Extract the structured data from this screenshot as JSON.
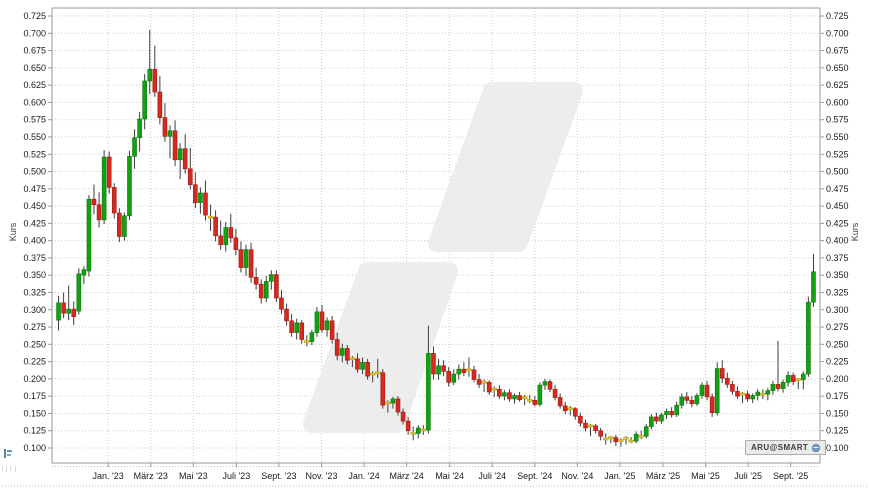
{
  "chart": {
    "ylabel_left": "Kurs",
    "ylabel_right": "Kurs",
    "badge_label": "ARU@SMART"
  },
  "chart_data": {
    "type": "candlestick",
    "title": "",
    "ylabel": "Kurs",
    "grid": true,
    "ylim": [
      0.0783,
      0.7366
    ],
    "y_ticks": [
      0.725,
      0.7,
      0.675,
      0.65,
      0.625,
      0.6,
      0.575,
      0.55,
      0.525,
      0.5,
      0.475,
      0.45,
      0.425,
      0.4,
      0.375,
      0.35,
      0.325,
      0.3,
      0.275,
      0.25,
      0.225,
      0.2,
      0.175,
      0.15,
      0.125,
      0.1
    ],
    "x_ticks": [
      {
        "label": "Jan. '23",
        "pos": 9.8
      },
      {
        "label": "März '23",
        "pos": 18.2
      },
      {
        "label": "Mai '23",
        "pos": 26.6
      },
      {
        "label": "Juli '23",
        "pos": 35.1
      },
      {
        "label": "Sept. '23",
        "pos": 43.5
      },
      {
        "label": "Nov. '23",
        "pos": 51.9
      },
      {
        "label": "Jan. '24",
        "pos": 60.3
      },
      {
        "label": "März '24",
        "pos": 68.7
      },
      {
        "label": "Mai '24",
        "pos": 77.2
      },
      {
        "label": "Juli '24",
        "pos": 85.6
      },
      {
        "label": "Sept. '24",
        "pos": 94.0
      },
      {
        "label": "Nov. '24",
        "pos": 102.4
      },
      {
        "label": "Jan. '25",
        "pos": 110.8
      },
      {
        "label": "März '25",
        "pos": 119.3
      },
      {
        "label": "Mai '25",
        "pos": 127.7
      },
      {
        "label": "Juli '25",
        "pos": 136.1
      },
      {
        "label": "Sept. '25",
        "pos": 144.5
      }
    ],
    "colors": {
      "up": "#13a013",
      "up_border": "#0b7a0b",
      "down": "#d42a20",
      "down_border": "#a31a12",
      "doji": "#dfc32c",
      "doji_border": "#b99f1f",
      "wick": "#3e3e3e"
    },
    "candles": [
      [
        0.285,
        0.32,
        0.27,
        0.31
      ],
      [
        0.31,
        0.325,
        0.288,
        0.295
      ],
      [
        0.295,
        0.335,
        0.285,
        0.301
      ],
      [
        0.301,
        0.312,
        0.278,
        0.29
      ],
      [
        0.298,
        0.36,
        0.293,
        0.352
      ],
      [
        0.35,
        0.363,
        0.337,
        0.358
      ],
      [
        0.356,
        0.466,
        0.348,
        0.46
      ],
      [
        0.46,
        0.481,
        0.438,
        0.452
      ],
      [
        0.452,
        0.47,
        0.419,
        0.43
      ],
      [
        0.43,
        0.531,
        0.424,
        0.521
      ],
      [
        0.521,
        0.529,
        0.468,
        0.477
      ],
      [
        0.477,
        0.483,
        0.432,
        0.44
      ],
      [
        0.44,
        0.447,
        0.398,
        0.406
      ],
      [
        0.406,
        0.441,
        0.4,
        0.436
      ],
      [
        0.436,
        0.53,
        0.43,
        0.522
      ],
      [
        0.522,
        0.561,
        0.504,
        0.549
      ],
      [
        0.549,
        0.586,
        0.529,
        0.576
      ],
      [
        0.576,
        0.641,
        0.561,
        0.631
      ],
      [
        0.631,
        0.705,
        0.612,
        0.648
      ],
      [
        0.648,
        0.682,
        0.608,
        0.615
      ],
      [
        0.615,
        0.638,
        0.568,
        0.578
      ],
      [
        0.578,
        0.599,
        0.543,
        0.551
      ],
      [
        0.551,
        0.567,
        0.519,
        0.559
      ],
      [
        0.559,
        0.574,
        0.508,
        0.517
      ],
      [
        0.517,
        0.541,
        0.489,
        0.533
      ],
      [
        0.533,
        0.554,
        0.497,
        0.504
      ],
      [
        0.504,
        0.534,
        0.474,
        0.481
      ],
      [
        0.481,
        0.499,
        0.447,
        0.455
      ],
      [
        0.455,
        0.477,
        0.439,
        0.469
      ],
      [
        0.469,
        0.487,
        0.429,
        0.437
      ],
      [
        0.437,
        0.452,
        0.414,
        0.434
      ],
      [
        0.434,
        0.444,
        0.399,
        0.407
      ],
      [
        0.407,
        0.429,
        0.387,
        0.394
      ],
      [
        0.394,
        0.427,
        0.384,
        0.419
      ],
      [
        0.419,
        0.439,
        0.397,
        0.404
      ],
      [
        0.404,
        0.417,
        0.379,
        0.387
      ],
      [
        0.387,
        0.399,
        0.354,
        0.361
      ],
      [
        0.361,
        0.394,
        0.349,
        0.387
      ],
      [
        0.387,
        0.397,
        0.339,
        0.347
      ],
      [
        0.347,
        0.361,
        0.329,
        0.337
      ],
      [
        0.337,
        0.344,
        0.309,
        0.317
      ],
      [
        0.317,
        0.349,
        0.311,
        0.341
      ],
      [
        0.341,
        0.357,
        0.329,
        0.351
      ],
      [
        0.351,
        0.357,
        0.311,
        0.317
      ],
      [
        0.317,
        0.329,
        0.294,
        0.301
      ],
      [
        0.301,
        0.309,
        0.277,
        0.284
      ],
      [
        0.284,
        0.294,
        0.261,
        0.267
      ],
      [
        0.267,
        0.287,
        0.257,
        0.281
      ],
      [
        0.281,
        0.285,
        0.251,
        0.257
      ],
      [
        0.257,
        0.263,
        0.247,
        0.254
      ],
      [
        0.254,
        0.271,
        0.249,
        0.267
      ],
      [
        0.267,
        0.304,
        0.261,
        0.297
      ],
      [
        0.297,
        0.307,
        0.267,
        0.271
      ],
      [
        0.271,
        0.289,
        0.261,
        0.284
      ],
      [
        0.284,
        0.291,
        0.251,
        0.257
      ],
      [
        0.257,
        0.267,
        0.227,
        0.234
      ],
      [
        0.234,
        0.251,
        0.224,
        0.244
      ],
      [
        0.244,
        0.249,
        0.221,
        0.227
      ],
      [
        0.227,
        0.233,
        0.217,
        0.229
      ],
      [
        0.229,
        0.237,
        0.209,
        0.214
      ],
      [
        0.214,
        0.231,
        0.207,
        0.224
      ],
      [
        0.224,
        0.229,
        0.199,
        0.204
      ],
      [
        0.204,
        0.211,
        0.195,
        0.207
      ],
      [
        0.207,
        0.229,
        0.201,
        0.209
      ],
      [
        0.209,
        0.214,
        0.157,
        0.162
      ],
      [
        0.162,
        0.169,
        0.151,
        0.165
      ],
      [
        0.165,
        0.174,
        0.157,
        0.171
      ],
      [
        0.171,
        0.175,
        0.147,
        0.152
      ],
      [
        0.152,
        0.157,
        0.134,
        0.139
      ],
      [
        0.139,
        0.145,
        0.119,
        0.125
      ],
      [
        0.125,
        0.131,
        0.111,
        0.121
      ],
      [
        0.121,
        0.133,
        0.114,
        0.129
      ],
      [
        0.129,
        0.133,
        0.119,
        0.126
      ],
      [
        0.126,
        0.277,
        0.121,
        0.237
      ],
      [
        0.237,
        0.247,
        0.199,
        0.207
      ],
      [
        0.207,
        0.229,
        0.199,
        0.219
      ],
      [
        0.219,
        0.227,
        0.204,
        0.211
      ],
      [
        0.211,
        0.217,
        0.189,
        0.195
      ],
      [
        0.195,
        0.214,
        0.191,
        0.207
      ],
      [
        0.207,
        0.221,
        0.199,
        0.214
      ],
      [
        0.214,
        0.224,
        0.204,
        0.209
      ],
      [
        0.209,
        0.231,
        0.203,
        0.213
      ],
      [
        0.213,
        0.219,
        0.195,
        0.199
      ],
      [
        0.199,
        0.207,
        0.187,
        0.192
      ],
      [
        0.192,
        0.199,
        0.181,
        0.195
      ],
      [
        0.195,
        0.198,
        0.177,
        0.181
      ],
      [
        0.181,
        0.189,
        0.174,
        0.185
      ],
      [
        0.185,
        0.191,
        0.171,
        0.175
      ],
      [
        0.175,
        0.184,
        0.169,
        0.18
      ],
      [
        0.18,
        0.185,
        0.167,
        0.171
      ],
      [
        0.171,
        0.179,
        0.164,
        0.176
      ],
      [
        0.176,
        0.181,
        0.167,
        0.17
      ],
      [
        0.17,
        0.177,
        0.162,
        0.173
      ],
      [
        0.173,
        0.177,
        0.165,
        0.169
      ],
      [
        0.169,
        0.175,
        0.16,
        0.163
      ],
      [
        0.163,
        0.195,
        0.16,
        0.191
      ],
      [
        0.191,
        0.2,
        0.184,
        0.196
      ],
      [
        0.196,
        0.199,
        0.181,
        0.185
      ],
      [
        0.185,
        0.191,
        0.169,
        0.173
      ],
      [
        0.173,
        0.179,
        0.157,
        0.161
      ],
      [
        0.161,
        0.167,
        0.149,
        0.154
      ],
      [
        0.154,
        0.161,
        0.147,
        0.157
      ],
      [
        0.157,
        0.159,
        0.141,
        0.146
      ],
      [
        0.146,
        0.151,
        0.131,
        0.136
      ],
      [
        0.136,
        0.141,
        0.124,
        0.129
      ],
      [
        0.129,
        0.135,
        0.117,
        0.132
      ],
      [
        0.132,
        0.135,
        0.121,
        0.125
      ],
      [
        0.125,
        0.129,
        0.111,
        0.117
      ],
      [
        0.117,
        0.121,
        0.105,
        0.113
      ],
      [
        0.113,
        0.117,
        0.107,
        0.115
      ],
      [
        0.115,
        0.119,
        0.103,
        0.109
      ],
      [
        0.109,
        0.114,
        0.102,
        0.111
      ],
      [
        0.111,
        0.117,
        0.105,
        0.114
      ],
      [
        0.114,
        0.116,
        0.107,
        0.11
      ],
      [
        0.11,
        0.124,
        0.107,
        0.12
      ],
      [
        0.12,
        0.125,
        0.113,
        0.117
      ],
      [
        0.117,
        0.135,
        0.114,
        0.131
      ],
      [
        0.131,
        0.149,
        0.127,
        0.145
      ],
      [
        0.145,
        0.151,
        0.135,
        0.139
      ],
      [
        0.139,
        0.151,
        0.135,
        0.148
      ],
      [
        0.148,
        0.157,
        0.142,
        0.153
      ],
      [
        0.153,
        0.159,
        0.144,
        0.148
      ],
      [
        0.148,
        0.167,
        0.145,
        0.162
      ],
      [
        0.162,
        0.179,
        0.157,
        0.174
      ],
      [
        0.174,
        0.181,
        0.164,
        0.169
      ],
      [
        0.169,
        0.175,
        0.159,
        0.164
      ],
      [
        0.164,
        0.179,
        0.161,
        0.176
      ],
      [
        0.176,
        0.195,
        0.171,
        0.191
      ],
      [
        0.191,
        0.197,
        0.169,
        0.174
      ],
      [
        0.174,
        0.179,
        0.145,
        0.151
      ],
      [
        0.151,
        0.224,
        0.147,
        0.215
      ],
      [
        0.215,
        0.227,
        0.194,
        0.201
      ],
      [
        0.201,
        0.209,
        0.187,
        0.192
      ],
      [
        0.192,
        0.197,
        0.177,
        0.182
      ],
      [
        0.182,
        0.189,
        0.171,
        0.175
      ],
      [
        0.175,
        0.181,
        0.165,
        0.178
      ],
      [
        0.178,
        0.183,
        0.167,
        0.171
      ],
      [
        0.171,
        0.179,
        0.165,
        0.176
      ],
      [
        0.176,
        0.185,
        0.169,
        0.181
      ],
      [
        0.181,
        0.185,
        0.171,
        0.178
      ],
      [
        0.178,
        0.187,
        0.169,
        0.183
      ],
      [
        0.183,
        0.197,
        0.177,
        0.192
      ],
      [
        0.192,
        0.255,
        0.182,
        0.186
      ],
      [
        0.186,
        0.199,
        0.18,
        0.195
      ],
      [
        0.195,
        0.211,
        0.189,
        0.205
      ],
      [
        0.205,
        0.209,
        0.191,
        0.196
      ],
      [
        0.196,
        0.201,
        0.185,
        0.199
      ],
      [
        0.199,
        0.211,
        0.185,
        0.207
      ],
      [
        0.207,
        0.319,
        0.203,
        0.311
      ],
      [
        0.311,
        0.381,
        0.304,
        0.355
      ]
    ]
  }
}
